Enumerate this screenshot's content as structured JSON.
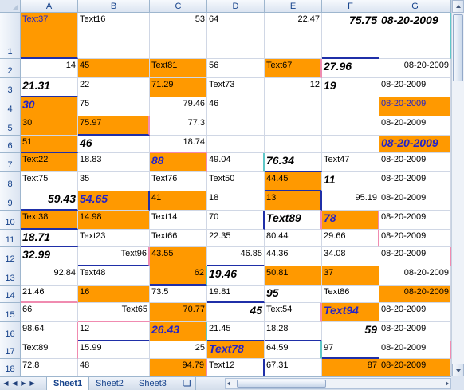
{
  "colors": {
    "accent_orange": "#ff9900",
    "blue_text": "#2424c8",
    "header_bg": "#dbe4f1"
  },
  "columns": [
    "A",
    "B",
    "C",
    "D",
    "E",
    "F",
    "G"
  ],
  "rows": [
    {
      "num": "1",
      "cells": [
        {
          "t": "Text37",
          "o": 1,
          "bl": 1
        },
        {
          "t": "Text16"
        },
        {
          "t": "53",
          "n": 1,
          "rp": 1
        },
        {
          "t": "64"
        },
        {
          "t": "22.47",
          "n": 1
        },
        {
          "t": "75.75",
          "n": 1,
          "b": 1
        },
        {
          "t": "08-20-2009",
          "b": 1
        }
      ]
    },
    {
      "num": "2",
      "cells": [
        {
          "t": "14",
          "n": 1
        },
        {
          "t": "45",
          "o": 1
        },
        {
          "t": "Text81",
          "o": 1
        },
        {
          "t": "56"
        },
        {
          "t": "Text67",
          "o": 1
        },
        {
          "t": "27.96",
          "b": 1
        },
        {
          "t": "08-20-2009",
          "n": 1
        }
      ]
    },
    {
      "num": "3",
      "cells": [
        {
          "t": "21.31",
          "b": 1
        },
        {
          "t": "22"
        },
        {
          "t": "71.29",
          "o": 1
        },
        {
          "t": "Text73"
        },
        {
          "t": "12",
          "n": 1
        },
        {
          "t": "19",
          "b": 1
        },
        {
          "t": "08-20-2009"
        }
      ]
    },
    {
      "num": "4",
      "cells": [
        {
          "t": "30",
          "b": 1,
          "bl": 1,
          "o": 1
        },
        {
          "t": "75"
        },
        {
          "t": "79.46",
          "n": 1
        },
        {
          "t": "46"
        },
        {
          "t": ""
        },
        {
          "t": ""
        },
        {
          "t": "08-20-2009",
          "o": 1,
          "bl": 1
        }
      ]
    },
    {
      "num": "5",
      "cells": [
        {
          "t": "30",
          "o": 1
        },
        {
          "t": "75.97",
          "o": 1
        },
        {
          "t": "77.3",
          "n": 1
        },
        {
          "t": ""
        },
        {
          "t": ""
        },
        {
          "t": ""
        },
        {
          "t": "08-20-2009"
        }
      ]
    },
    {
      "num": "6",
      "cells": [
        {
          "t": "51",
          "o": 1
        },
        {
          "t": "46",
          "b": 1
        },
        {
          "t": "18.74",
          "n": 1
        },
        {
          "t": ""
        },
        {
          "t": ""
        },
        {
          "t": ""
        },
        {
          "t": "08-20-2009",
          "o": 1,
          "b": 1,
          "bl": 1
        }
      ]
    },
    {
      "num": "7",
      "cells": [
        {
          "t": "Text22",
          "o": 1
        },
        {
          "t": "18.83"
        },
        {
          "t": "88",
          "o": 1,
          "b": 1,
          "bl": 1
        },
        {
          "t": "49.04"
        },
        {
          "t": "76.34",
          "b": 1
        },
        {
          "t": "Text47"
        },
        {
          "t": "08-20-2009"
        }
      ]
    },
    {
      "num": "8",
      "cells": [
        {
          "t": "Text75"
        },
        {
          "t": "35"
        },
        {
          "t": "Text76"
        },
        {
          "t": "Text50"
        },
        {
          "t": "44.45",
          "o": 1
        },
        {
          "t": "11",
          "b": 1
        },
        {
          "t": "08-20-2009"
        }
      ]
    },
    {
      "num": "9",
      "cells": [
        {
          "t": "59.43",
          "n": 1,
          "b": 1
        },
        {
          "t": "54.65",
          "o": 1,
          "b": 1,
          "bl": 1
        },
        {
          "t": "41",
          "o": 1
        },
        {
          "t": "18"
        },
        {
          "t": "13",
          "o": 1
        },
        {
          "t": "95.19",
          "n": 1
        },
        {
          "t": "08-20-2009"
        }
      ]
    },
    {
      "num": "10",
      "cells": [
        {
          "t": "Text38",
          "o": 1
        },
        {
          "t": "14.98",
          "o": 1
        },
        {
          "t": "Text14"
        },
        {
          "t": "70"
        },
        {
          "t": "Text89",
          "b": 1
        },
        {
          "t": "78",
          "o": 1,
          "b": 1,
          "bl": 1
        },
        {
          "t": "08-20-2009"
        }
      ]
    },
    {
      "num": "11",
      "cells": [
        {
          "t": "18.71",
          "b": 1
        },
        {
          "t": "Text23"
        },
        {
          "t": "Text66"
        },
        {
          "t": "22.35"
        },
        {
          "t": "80.44"
        },
        {
          "t": "29.66"
        },
        {
          "t": "08-20-2009"
        }
      ]
    },
    {
      "num": "12",
      "cells": [
        {
          "t": "32.99",
          "b": 1
        },
        {
          "t": "Text96",
          "n": 1
        },
        {
          "t": "43.55",
          "o": 1
        },
        {
          "t": "46.85",
          "n": 1
        },
        {
          "t": "44.36"
        },
        {
          "t": "34.08"
        },
        {
          "t": "08-20-2009"
        }
      ]
    },
    {
      "num": "13",
      "cells": [
        {
          "t": "92.84",
          "n": 1
        },
        {
          "t": "Text48"
        },
        {
          "t": "62",
          "n": 1,
          "o": 1
        },
        {
          "t": "19.46",
          "b": 1
        },
        {
          "t": "50.81",
          "o": 1
        },
        {
          "t": "37",
          "o": 1
        },
        {
          "t": "08-20-2009",
          "n": 1
        }
      ]
    },
    {
      "num": "14",
      "cells": [
        {
          "t": "21.46"
        },
        {
          "t": "16",
          "o": 1
        },
        {
          "t": "73.5"
        },
        {
          "t": "19.81"
        },
        {
          "t": "95",
          "b": 1
        },
        {
          "t": "Text86"
        },
        {
          "t": "08-20-2009",
          "n": 1,
          "o": 1
        }
      ]
    },
    {
      "num": "15",
      "cells": [
        {
          "t": "66"
        },
        {
          "t": "Text65",
          "n": 1
        },
        {
          "t": "70.77",
          "n": 1,
          "o": 1
        },
        {
          "t": "45",
          "n": 1,
          "b": 1
        },
        {
          "t": "Text54"
        },
        {
          "t": "Text94",
          "o": 1,
          "b": 1,
          "bl": 1
        },
        {
          "t": "08-20-2009"
        }
      ]
    },
    {
      "num": "16",
      "cells": [
        {
          "t": "98.64"
        },
        {
          "t": "12"
        },
        {
          "t": "26.43",
          "o": 1,
          "b": 1,
          "bl": 1
        },
        {
          "t": "21.45"
        },
        {
          "t": "18.28"
        },
        {
          "t": "59",
          "n": 1,
          "b": 1
        },
        {
          "t": "08-20-2009"
        }
      ]
    },
    {
      "num": "17",
      "cells": [
        {
          "t": "Text89"
        },
        {
          "t": "15.99"
        },
        {
          "t": "25",
          "n": 1
        },
        {
          "t": "Text78",
          "o": 1,
          "b": 1,
          "bl": 1
        },
        {
          "t": "64.59"
        },
        {
          "t": "97"
        },
        {
          "t": "08-20-2009"
        }
      ]
    },
    {
      "num": "18",
      "cells": [
        {
          "t": "72.8"
        },
        {
          "t": "48"
        },
        {
          "t": "94.79",
          "n": 1,
          "o": 1
        },
        {
          "t": "Text12"
        },
        {
          "t": "67.31"
        },
        {
          "t": "87",
          "n": 1,
          "o": 1
        },
        {
          "t": "08-20-2009",
          "o": 1
        }
      ]
    }
  ],
  "sheets": [
    "Sheet1",
    "Sheet2",
    "Sheet3"
  ],
  "active_sheet": "Sheet1"
}
